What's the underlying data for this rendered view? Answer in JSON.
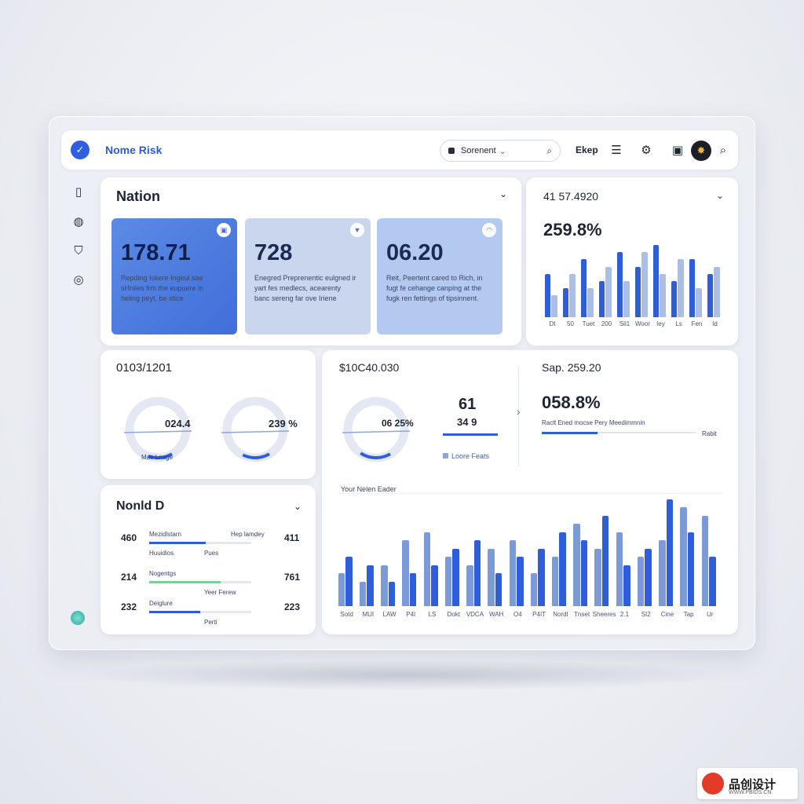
{
  "app": {
    "title": "Nome Risk",
    "search_value": "Sorenent",
    "top_label": "Ekep"
  },
  "nation_card": {
    "title": "Nation",
    "kpis": [
      {
        "value": "178.71",
        "desc": "Repding Iskere Ingeul sae sHnlies frm the eupuere in heling peyt, be stice",
        "color": "#3f6fd9"
      },
      {
        "value": "728",
        "desc": "Enegred Preprenentic eulgned ir yart fes medlecs, acearenty banc sereng far ove Iriene",
        "color": "#c9d6ee"
      },
      {
        "value": "06.20",
        "desc": "Reit, Peertent cared to Rich, in fugt fe cehange canping at the fugk ren fettings of tipsinnent.",
        "color": "#b3c9f0"
      }
    ]
  },
  "top_right_card": {
    "title": "41 57.4920",
    "value": "259.8%",
    "ticks": [
      "Dt",
      "50",
      "Tuet",
      "200",
      "Sil1",
      "Woor",
      "Iey",
      "Ls",
      "Fen",
      "Id"
    ]
  },
  "donut_card": {
    "title": "0103/1201",
    "donuts": [
      {
        "label": "024.4",
        "fraction": 0.55
      },
      {
        "label": "239 %",
        "fraction": 0.62
      }
    ],
    "caption": "Mae Lnage"
  },
  "main_card": {
    "amount": "$10C40.030",
    "donut_label": "06 25%",
    "donut_fraction": 0.7,
    "big_num": "61",
    "sub_num": "34 9",
    "legend_text": "Loore Feats",
    "right_title": "Sap. 259.20",
    "right_value": "058.8%",
    "right_desc": "Raclt Ened mocse Pery Meedimmnin",
    "right_tag": "Rabit",
    "chart_label": "Your Nelen Eader",
    "ticks": [
      "Sotd",
      "MUI",
      "LAW",
      "P4I",
      "LS",
      "Dokt",
      "VDCA",
      "WAH",
      "O4",
      "P4IT",
      "Nordl",
      "Tnset",
      "Sheeres",
      "2.1",
      "SI2",
      "Cine",
      "Tap",
      "Ur"
    ]
  },
  "list_card": {
    "title": "Nonld D",
    "rows": [
      {
        "left": "460",
        "name": "Mezidlstarn",
        "sub": "Huuidios",
        "tag": "Pues",
        "right_label": "Hep lamdey",
        "right": "411",
        "fraction": 0.55,
        "color": "#2f5fd8"
      },
      {
        "left": "214",
        "name": "Nogentgs",
        "sub": "",
        "tag": "Yeer Ferew",
        "right_label": "",
        "right": "761",
        "fraction": 0.7,
        "color": "#7ccf9a"
      },
      {
        "left": "232",
        "name": "Deiglure",
        "sub": "",
        "tag": "Perti",
        "right_label": "",
        "right": "223",
        "fraction": 0.5,
        "color": "#2f5fd8"
      }
    ]
  },
  "watermark": {
    "text": "品创设计",
    "sub": "WWW.PBIDS.CN"
  },
  "colors": {
    "accent": "#2f5fd8",
    "light_bar": "#aabfe3",
    "mid_bar": "#7c9ad8"
  },
  "chart_data": [
    {
      "type": "bar",
      "categories": [
        "Dt",
        "50",
        "Tuet",
        "200",
        "Sil1",
        "Woor",
        "Iey",
        "Ls",
        "Fen",
        "Id"
      ],
      "series": [
        {
          "values": [
            6,
            4,
            8,
            5,
            9,
            7,
            10,
            5,
            8,
            6
          ]
        },
        {
          "values": [
            3,
            6,
            4,
            7,
            5,
            9,
            6,
            8,
            4,
            7
          ]
        }
      ]
    },
    {
      "type": "bar",
      "categories": [
        "Sotd",
        "MUI",
        "LAW",
        "P4I",
        "LS",
        "Dokt",
        "VDCA",
        "WAH",
        "O4",
        "P4IT",
        "Nordl",
        "Tnset",
        "Sheeres",
        "2.1",
        "SI2",
        "Cine",
        "Tap",
        "Ur"
      ],
      "series": [
        {
          "values": [
            4,
            3,
            5,
            8,
            9,
            6,
            5,
            7,
            8,
            4,
            6,
            10,
            7,
            9,
            6,
            8,
            12,
            11
          ]
        },
        {
          "values": [
            6,
            5,
            3,
            4,
            5,
            7,
            8,
            4,
            6,
            7,
            9,
            8,
            11,
            5,
            7,
            13,
            9,
            6
          ]
        }
      ]
    }
  ]
}
